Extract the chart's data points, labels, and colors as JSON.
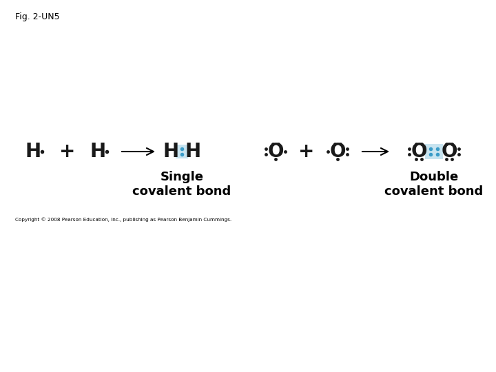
{
  "fig_label": "Fig. 2-UN5",
  "copyright": "Copyright © 2008 Pearson Education, Inc., publishing as Pearson Benjamin Cummings.",
  "bg_color": "#ffffff",
  "single_bond_label": "Single\ncovalent bond",
  "double_bond_label": "Double\ncovalent bond",
  "electron_color": "#1a1a1a",
  "bond_highlight_color": "#c8e4f0",
  "shared_electron_color": "#3a9cc8"
}
